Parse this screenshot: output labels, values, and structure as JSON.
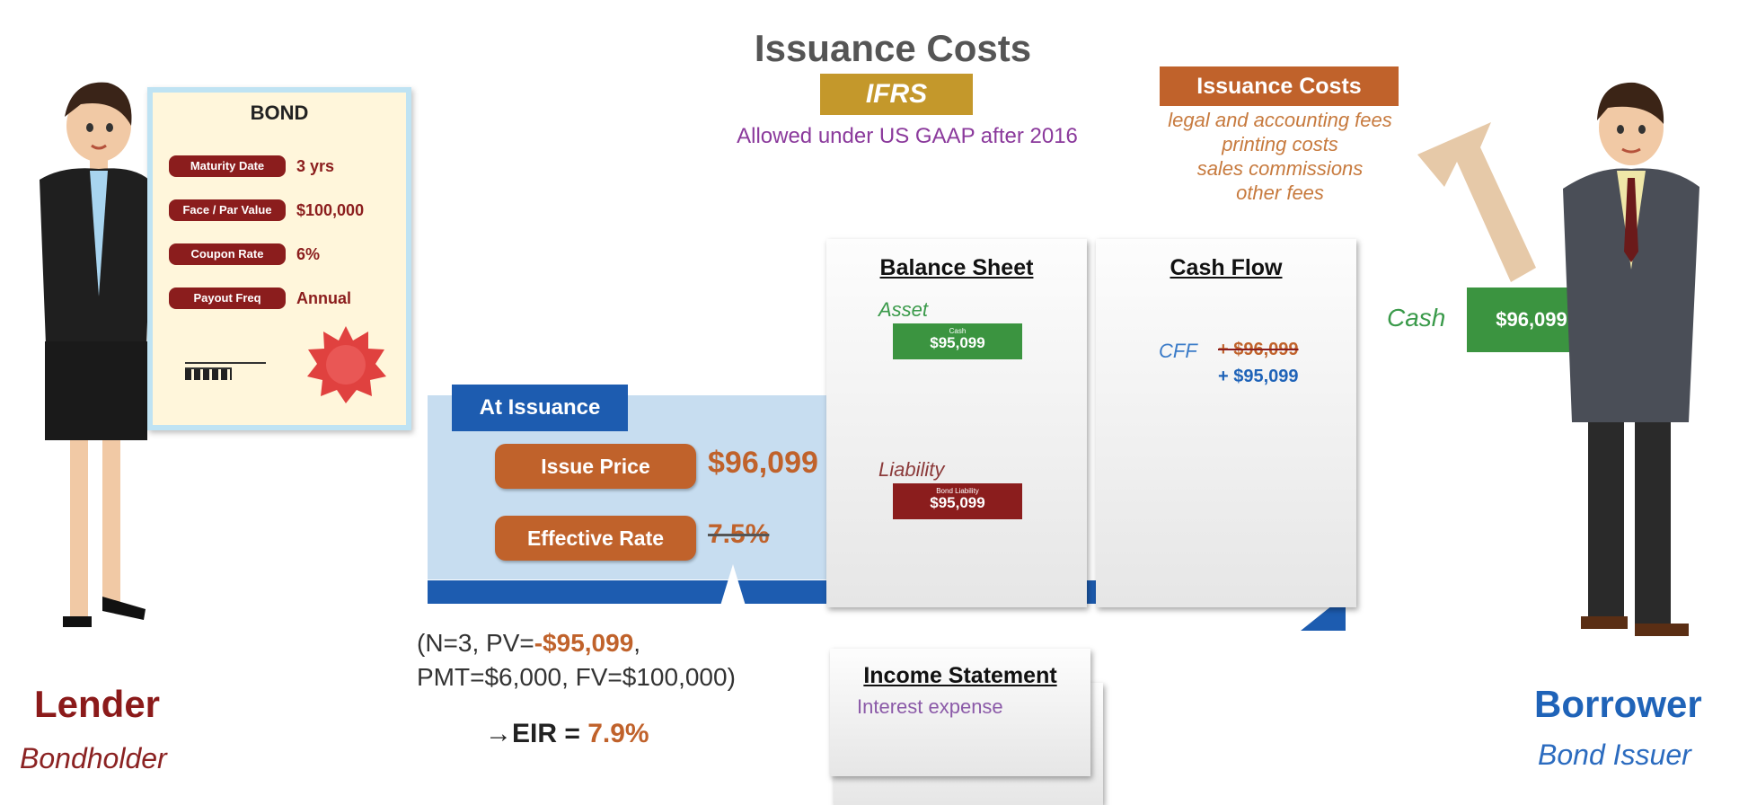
{
  "title": "Issuance Costs",
  "ifrs_badge": "IFRS",
  "gaap_note": "Allowed under US GAAP after 2016",
  "issuance_costs_box": {
    "label": "Issuance Costs",
    "items": [
      "legal and accounting fees",
      "printing costs",
      "sales commissions",
      "other fees"
    ]
  },
  "bond": {
    "title": "BOND",
    "rows": [
      {
        "label": "Maturity Date",
        "value": "3 yrs"
      },
      {
        "label": "Face / Par Value",
        "value": "$100,000"
      },
      {
        "label": "Coupon Rate",
        "value": "6%"
      },
      {
        "label": "Payout Freq",
        "value": "Annual"
      }
    ]
  },
  "at_issuance": {
    "tab": "At Issuance",
    "issue_price_label": "Issue Price",
    "issue_price_value": "$96,099",
    "effective_rate_label": "Effective Rate",
    "effective_rate_value": "7.5%"
  },
  "calc": {
    "line1_prefix": "(N=3, PV=",
    "line1_pv": "-$95,099",
    "line1_suffix": ",",
    "line2": "PMT=$6,000, FV=$100,000)",
    "eir_label": "→EIR = ",
    "eir_value": "7.9%"
  },
  "balance_sheet": {
    "title": "Balance Sheet",
    "asset_label": "Asset",
    "cash_caption": "Cash",
    "cash_value": "$95,099",
    "liability_label": "Liability",
    "liability_caption": "Bond Liability",
    "liability_value": "$95,099"
  },
  "cash_flow": {
    "title": "Cash Flow",
    "cff_label": "CFF",
    "cff_old": "+ $96,099",
    "cff_new": "+ $95,099"
  },
  "income_statement": {
    "title": "Income Statement",
    "line": "Interest expense"
  },
  "borrower_cash": {
    "label": "Cash",
    "value": "$96,099"
  },
  "lender": {
    "name": "Lender",
    "role": "Bondholder"
  },
  "borrower": {
    "name": "Borrower",
    "role": "Bond Issuer"
  },
  "colors": {
    "accent_orange": "#c0622b",
    "ifrs_gold": "#c4982b",
    "blue": "#1d5cb0",
    "green": "#3b9440",
    "maroon": "#8b1d1d"
  }
}
